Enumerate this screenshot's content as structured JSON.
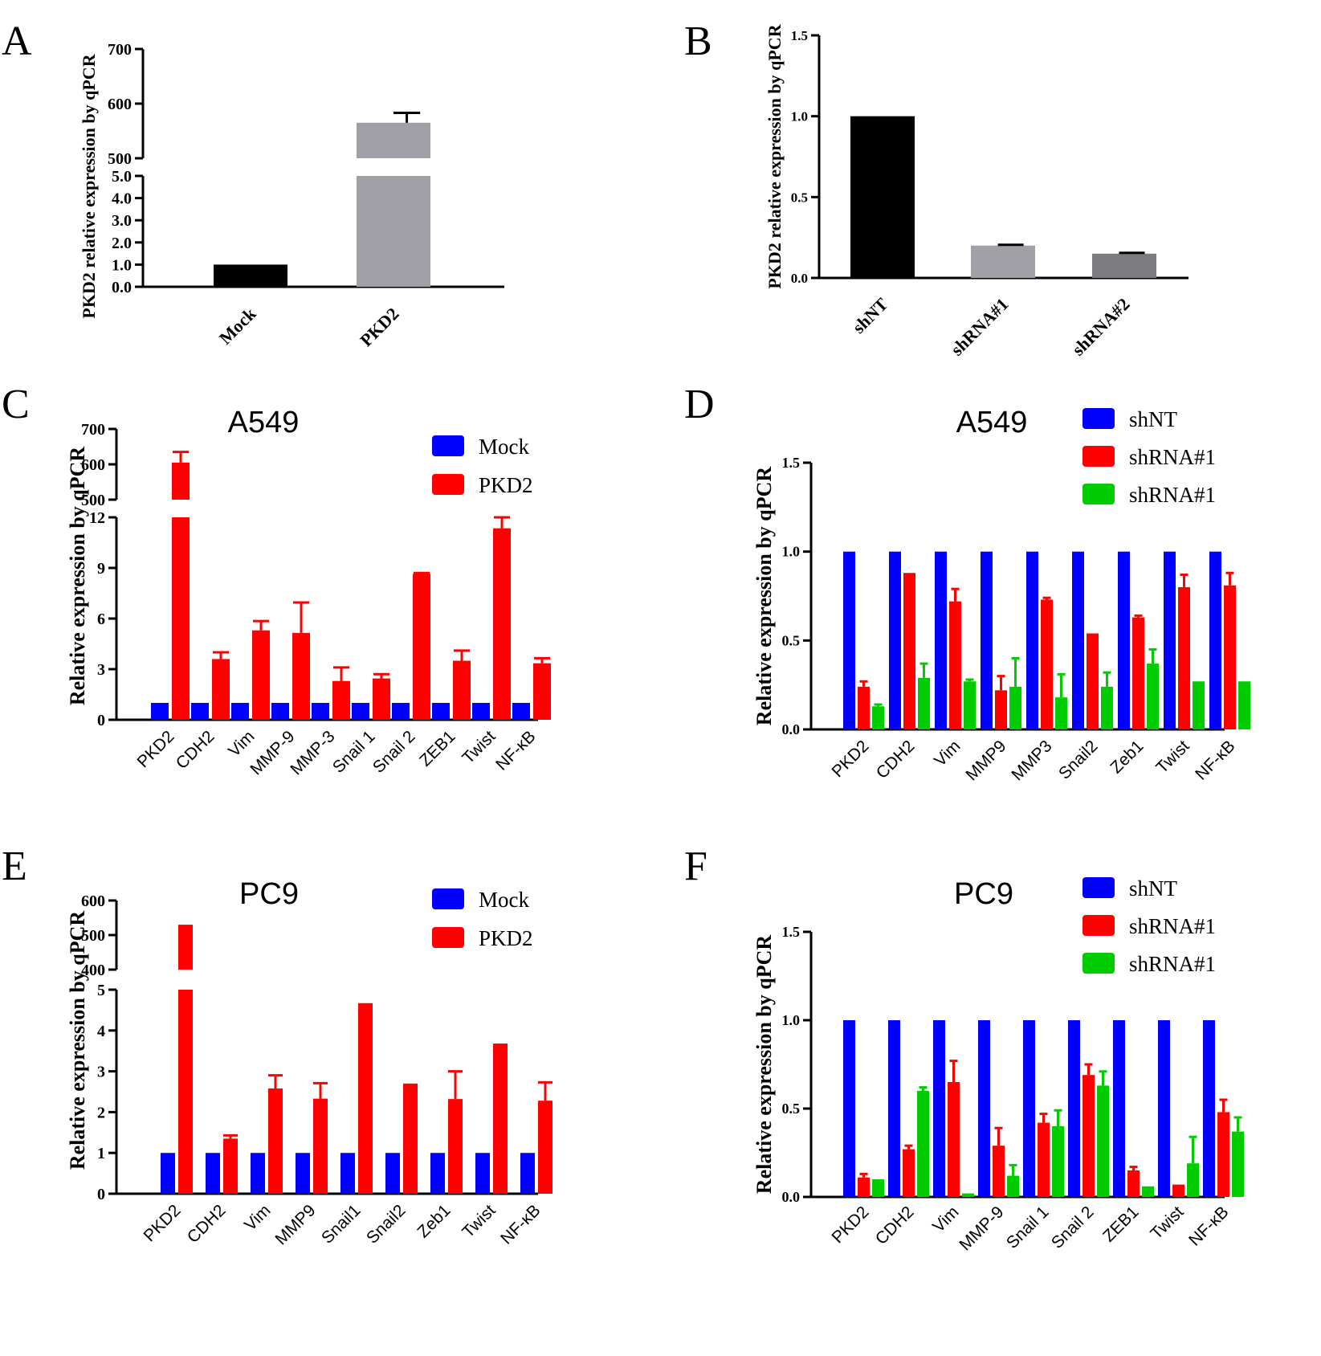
{
  "figure": {
    "colors": {
      "blue": "#0000ff",
      "red": "#ff0000",
      "green": "#00cc00",
      "black": "#000000",
      "gray": "#a0a0a6",
      "darkgray": "#7c7c80"
    }
  },
  "chart_data": [
    {
      "panel": "A",
      "type": "bar",
      "title": "",
      "ylabel": "PKD2 relative expression by qPCR",
      "xlabel": "",
      "categories": [
        "Mock",
        "PKD2"
      ],
      "values": [
        1.0,
        565
      ],
      "errors": [
        0,
        18
      ],
      "bar_colors": [
        "#000000",
        "#a0a0a6"
      ],
      "y_axis_break": {
        "lower_range": [
          0,
          5
        ],
        "upper_range": [
          500,
          700
        ]
      },
      "yticks_lower": [
        "0.0",
        "1.0",
        "2.0",
        "3.0",
        "4.0",
        "5.0"
      ],
      "yticks_upper": [
        "500",
        "600",
        "700"
      ]
    },
    {
      "panel": "B",
      "type": "bar",
      "title": "",
      "ylabel": "PKD2 relative expression by qPCR",
      "xlabel": "",
      "categories": [
        "shNT",
        "shRNA#1",
        "shRNA#2"
      ],
      "values": [
        1.0,
        0.2,
        0.15
      ],
      "errors": [
        0,
        0.005,
        0.005
      ],
      "bar_colors": [
        "#000000",
        "#a0a0a6",
        "#7c7c80"
      ],
      "ylim": [
        0,
        1.5
      ],
      "yticks": [
        "0.0",
        "0.5",
        "1.0",
        "1.5"
      ]
    },
    {
      "panel": "C",
      "type": "bar",
      "title": "A549",
      "ylabel": "Relative expression by qPCR",
      "xlabel": "",
      "categories": [
        "PKD2",
        "CDH2",
        "Vim",
        "MMP-9",
        "MMP-3",
        "Snail 1",
        "Snail 2",
        "ZEB1",
        "Twist",
        "NF-κB"
      ],
      "series": [
        {
          "name": "Mock",
          "color": "#0000ff",
          "values": [
            1,
            1,
            1,
            1,
            1,
            1,
            1,
            1,
            1,
            1
          ],
          "errors": [
            0,
            0,
            0,
            0,
            0,
            0,
            0,
            0,
            0,
            0
          ]
        },
        {
          "name": "PKD2",
          "color": "#ff0000",
          "values": [
            605,
            3.6,
            5.3,
            5.15,
            2.3,
            2.45,
            8.65,
            3.5,
            11.35,
            3.35
          ],
          "errors": [
            30,
            0.4,
            0.55,
            1.8,
            0.8,
            0.25,
            0.05,
            0.6,
            0.65,
            0.3
          ]
        }
      ],
      "y_axis_break": {
        "lower_range": [
          0,
          12
        ],
        "upper_range": [
          500,
          700
        ]
      },
      "yticks_lower": [
        "0",
        "3",
        "6",
        "9",
        "12"
      ],
      "yticks_upper": [
        "500",
        "600",
        "700"
      ]
    },
    {
      "panel": "D",
      "type": "bar",
      "title": "A549",
      "ylabel": "Relative expression by qPCR",
      "xlabel": "",
      "categories": [
        "PKD2",
        "CDH2",
        "Vim",
        "MMP9",
        "MMP3",
        "Snail2",
        "Zeb1",
        "Twist",
        "NF-κB"
      ],
      "series": [
        {
          "name": "shNT",
          "color": "#0000ff",
          "values": [
            1,
            1,
            1,
            1,
            1,
            1,
            1,
            1,
            1
          ],
          "errors": [
            0,
            0,
            0,
            0,
            0,
            0,
            0,
            0,
            0
          ]
        },
        {
          "name": "shRNA#1",
          "color": "#ff0000",
          "values": [
            0.24,
            0.88,
            0.72,
            0.22,
            0.73,
            0.54,
            0.63,
            0.8,
            0.81
          ],
          "errors": [
            0.03,
            0,
            0.07,
            0.08,
            0.01,
            0,
            0.01,
            0.07,
            0.07
          ]
        },
        {
          "name": "shRNA#1",
          "color": "#00cc00",
          "values": [
            0.13,
            0.29,
            0.27,
            0.24,
            0.18,
            0.24,
            0.37,
            0.27,
            0.27
          ],
          "errors": [
            0.01,
            0.08,
            0.01,
            0.16,
            0.13,
            0.08,
            0.08,
            0,
            0
          ]
        }
      ],
      "ylim": [
        0,
        1.5
      ],
      "yticks": [
        "0.0",
        "0.5",
        "1.0",
        "1.5"
      ]
    },
    {
      "panel": "E",
      "type": "bar",
      "title": "PC9",
      "ylabel": "Relative expression by qPCR",
      "xlabel": "",
      "categories": [
        "PKD2",
        "CDH2",
        "Vim",
        "MMP9",
        "Snail1",
        "Snail2",
        "Zeb1",
        "Twist",
        "NF-κB"
      ],
      "series": [
        {
          "name": "Mock",
          "color": "#0000ff",
          "values": [
            1,
            1,
            1,
            1,
            1,
            1,
            1,
            1,
            1
          ],
          "errors": [
            0,
            0,
            0,
            0,
            0,
            0,
            0,
            0,
            0
          ]
        },
        {
          "name": "PKD2",
          "color": "#ff0000",
          "values": [
            530,
            1.35,
            2.58,
            2.33,
            4.67,
            2.7,
            2.32,
            3.68,
            2.28
          ],
          "errors": [
            0,
            0.08,
            0.32,
            0.38,
            0,
            0,
            0.68,
            0,
            0.45
          ]
        }
      ],
      "y_axis_break": {
        "lower_range": [
          0,
          5
        ],
        "upper_range": [
          400,
          600
        ]
      },
      "yticks_lower": [
        "0",
        "1",
        "2",
        "3",
        "4",
        "5"
      ],
      "yticks_upper": [
        "400",
        "500",
        "600"
      ]
    },
    {
      "panel": "F",
      "type": "bar",
      "title": "PC9",
      "ylabel": "Relative expression by qPCR",
      "xlabel": "",
      "categories": [
        "PKD2",
        "CDH2",
        "Vim",
        "MMP-9",
        "Snail 1",
        "Snail 2",
        "ZEB1",
        "Twist",
        "NF-κB"
      ],
      "series": [
        {
          "name": "shNT",
          "color": "#0000ff",
          "values": [
            1,
            1,
            1,
            1,
            1,
            1,
            1,
            1,
            1
          ],
          "errors": [
            0,
            0,
            0,
            0,
            0,
            0,
            0,
            0,
            0
          ]
        },
        {
          "name": "shRNA#1",
          "color": "#ff0000",
          "values": [
            0.11,
            0.27,
            0.65,
            0.29,
            0.42,
            0.69,
            0.15,
            0.07,
            0.48
          ],
          "errors": [
            0.02,
            0.02,
            0.12,
            0.1,
            0.05,
            0.06,
            0.02,
            0,
            0.07
          ]
        },
        {
          "name": "shRNA#1",
          "color": "#00cc00",
          "values": [
            0.1,
            0.6,
            0.02,
            0.12,
            0.4,
            0.63,
            0.06,
            0.19,
            0.37
          ],
          "errors": [
            0,
            0.02,
            0,
            0.06,
            0.09,
            0.08,
            0,
            0.15,
            0.08
          ]
        }
      ],
      "ylim": [
        0,
        1.5
      ],
      "yticks": [
        "0.0",
        "0.5",
        "1.0",
        "1.5"
      ]
    }
  ]
}
